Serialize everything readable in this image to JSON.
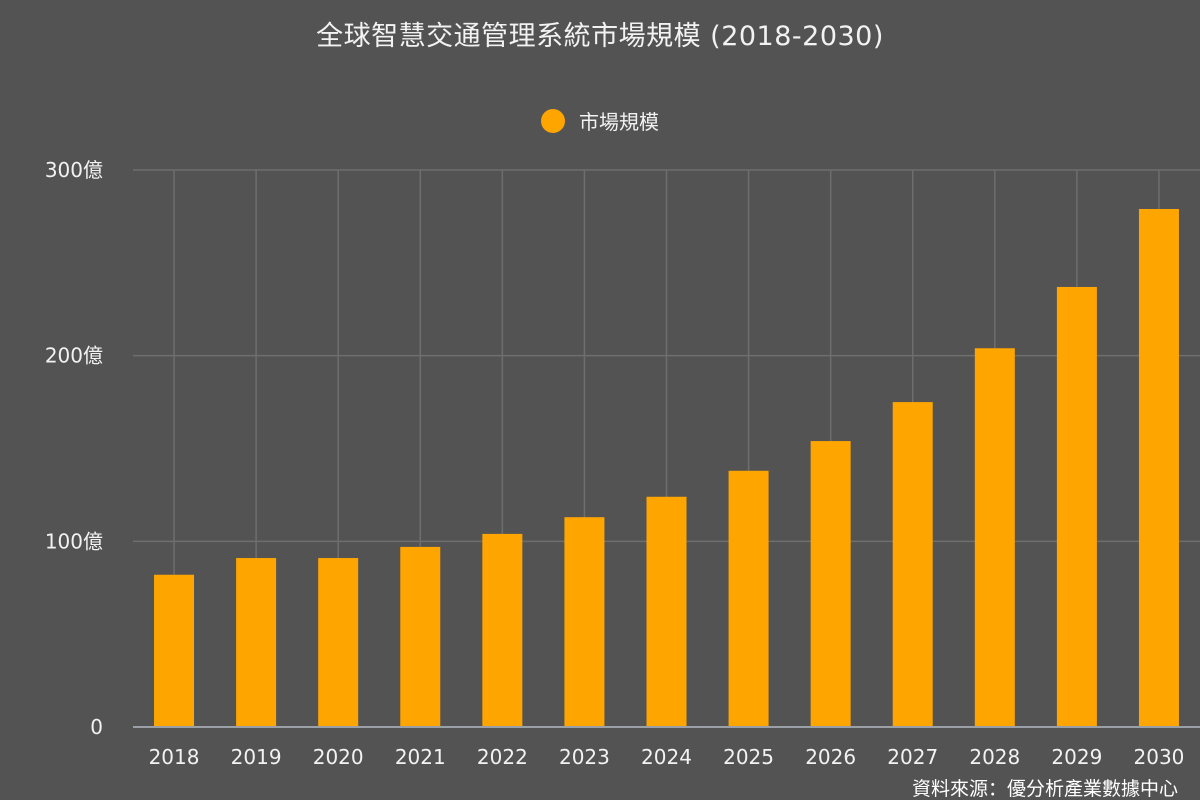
{
  "colors": {
    "background": "#535353",
    "bar": "#FFA500",
    "grid": "#6e6e6e",
    "axis": "#9aa0a6",
    "text": "#f2f2f2"
  },
  "source_text": "資料來源：優分析產業數據中心",
  "chart_data": {
    "type": "bar",
    "title": "全球智慧交通管理系統市場規模 (2018-2030)",
    "legend": {
      "position": "top-center",
      "entries": [
        "市場規模"
      ]
    },
    "grid": true,
    "categories": [
      "2018",
      "2019",
      "2020",
      "2021",
      "2022",
      "2023",
      "2024",
      "2025",
      "2026",
      "2027",
      "2028",
      "2029",
      "2030"
    ],
    "series": [
      {
        "name": "市場規模",
        "values": [
          82,
          91,
          91,
          97,
          104,
          113,
          124,
          138,
          154,
          175,
          204,
          237,
          279
        ]
      }
    ],
    "ylim": [
      0,
      300
    ],
    "yticks": [
      0,
      100,
      200,
      300
    ],
    "ytick_labels": [
      "0",
      "100億",
      "200億",
      "300億"
    ],
    "xlabel": "",
    "ylabel": ""
  }
}
